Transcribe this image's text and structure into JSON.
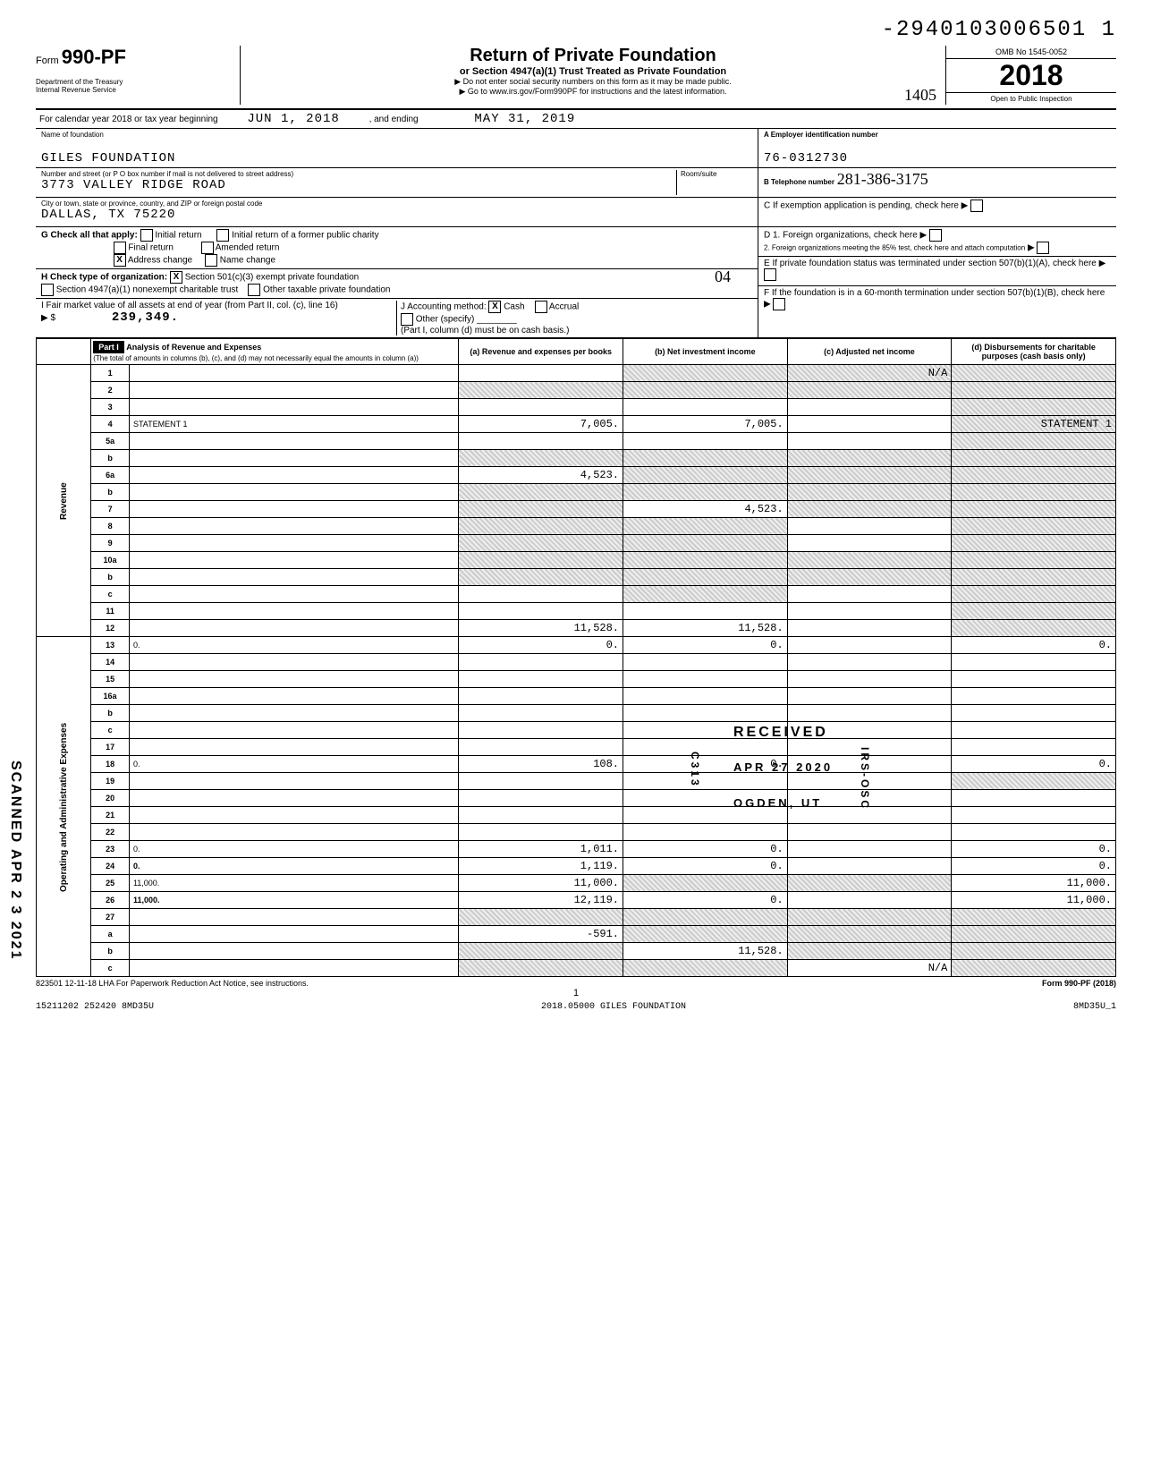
{
  "doc_id": "-2940103006501  1",
  "form": {
    "number": "990-PF",
    "prefix": "Form",
    "dept": "Department of the Treasury\nInternal Revenue Service",
    "title": "Return of Private Foundation",
    "subtitle": "or Section 4947(a)(1) Trust Treated as Private Foundation",
    "note1": "▶ Do not enter social security numbers on this form as it may be made public.",
    "note2": "▶ Go to www.irs.gov/Form990PF for instructions and the latest information.",
    "omb": "OMB No 1545-0052",
    "year": "2018",
    "open": "Open to Public Inspection"
  },
  "hand_note": "1405",
  "cal_year": {
    "label": "For calendar year 2018 or tax year beginning",
    "begin": "JUN 1, 2018",
    "mid": ", and ending",
    "end": "MAY 31, 2019"
  },
  "name": {
    "label": "Name of foundation",
    "value": "GILES FOUNDATION"
  },
  "address": {
    "label": "Number and street (or P O box number if mail is not delivered to street address)",
    "value": "3773 VALLEY RIDGE ROAD",
    "room_label": "Room/suite",
    "city_label": "City or town, state or province, country, and ZIP or foreign postal code",
    "city_value": "DALLAS, TX   75220"
  },
  "ein": {
    "label": "A Employer identification number",
    "value": "76-0312730"
  },
  "tel": {
    "label": "B Telephone number",
    "value": "281-386-3175"
  },
  "boxC": "C  If exemption application is pending, check here",
  "boxD1": "D 1. Foreign organizations, check here",
  "boxD2": "2. Foreign organizations meeting the 85% test, check here and attach computation",
  "boxE": "E  If private foundation status was terminated under section 507(b)(1)(A), check here",
  "boxF": "F  If the foundation is in a 60-month termination under section 507(b)(1)(B), check here",
  "checkG": {
    "label": "G   Check all that apply:",
    "items": [
      "Initial return",
      "Initial return of a former public charity",
      "Final return",
      "Amended return",
      "Address change",
      "Name change"
    ]
  },
  "checkH": {
    "label": "H   Check type of organization:",
    "items": [
      "Section 501(c)(3) exempt private foundation",
      "Section 4947(a)(1) nonexempt charitable trust",
      "Other taxable private foundation"
    ]
  },
  "lineI": {
    "label": "I   Fair market value of all assets at end of year (from Part II, col. (c), line 16)",
    "value": "239,349."
  },
  "lineJ": {
    "label": "J   Accounting method:",
    "cash": "Cash",
    "accrual": "Accrual",
    "other": "Other (specify)",
    "note": "(Part I, column (d) must be on cash basis.)"
  },
  "hand_04": "04",
  "part1": {
    "title": "Part I",
    "header": "Analysis of Revenue and Expenses",
    "subheader": "(The total of amounts in columns (b), (c), and (d) may not necessarily equal the amounts in column (a))",
    "col_a": "(a) Revenue and expenses per books",
    "col_b": "(b) Net investment income",
    "col_c": "(c) Adjusted net income",
    "col_d": "(d) Disbursements for charitable purposes (cash basis only)"
  },
  "side_rev": "Revenue",
  "side_exp": "Operating and Administrative Expenses",
  "rows": [
    {
      "n": "1",
      "d": "",
      "a": "",
      "b": "",
      "c": "N/A",
      "shadeB": true,
      "shadeC": true,
      "shadeD": true
    },
    {
      "n": "2",
      "d": "",
      "a": "",
      "b": "",
      "c": "",
      "shadeA": true,
      "shadeB": true,
      "shadeC": true,
      "shadeD": true
    },
    {
      "n": "3",
      "d": "",
      "a": "",
      "b": "",
      "c": "",
      "shadeD": true
    },
    {
      "n": "4",
      "d": "STATEMENT 1",
      "a": "7,005.",
      "b": "7,005.",
      "c": "",
      "shadeD": true
    },
    {
      "n": "5a",
      "d": "",
      "a": "",
      "b": "",
      "c": "",
      "shadeD": true
    },
    {
      "n": "b",
      "d": "",
      "a": "",
      "b": "",
      "c": "",
      "shadeA": true,
      "shadeB": true,
      "shadeC": true,
      "shadeD": true
    },
    {
      "n": "6a",
      "d": "",
      "a": "4,523.",
      "b": "",
      "c": "",
      "shadeB": true,
      "shadeC": true,
      "shadeD": true
    },
    {
      "n": "b",
      "d": "",
      "a": "",
      "b": "",
      "c": "",
      "shadeA": true,
      "shadeB": true,
      "shadeC": true,
      "shadeD": true
    },
    {
      "n": "7",
      "d": "",
      "a": "",
      "b": "4,523.",
      "c": "",
      "shadeA": true,
      "shadeC": true,
      "shadeD": true
    },
    {
      "n": "8",
      "d": "",
      "a": "",
      "b": "",
      "c": "",
      "shadeA": true,
      "shadeB": true,
      "shadeD": true
    },
    {
      "n": "9",
      "d": "",
      "a": "",
      "b": "",
      "c": "",
      "shadeA": true,
      "shadeB": true,
      "shadeD": true
    },
    {
      "n": "10a",
      "d": "",
      "a": "",
      "b": "",
      "c": "",
      "shadeA": true,
      "shadeB": true,
      "shadeC": true,
      "shadeD": true
    },
    {
      "n": "b",
      "d": "",
      "a": "",
      "b": "",
      "c": "",
      "shadeA": true,
      "shadeB": true,
      "shadeC": true,
      "shadeD": true
    },
    {
      "n": "c",
      "d": "",
      "a": "",
      "b": "",
      "c": "",
      "shadeB": true,
      "shadeD": true
    },
    {
      "n": "11",
      "d": "",
      "a": "",
      "b": "",
      "c": "",
      "shadeD": true
    },
    {
      "n": "12",
      "d": "",
      "a": "11,528.",
      "b": "11,528.",
      "c": "",
      "shadeD": true,
      "bold": true
    },
    {
      "n": "13",
      "d": "0.",
      "a": "0.",
      "b": "0.",
      "c": ""
    },
    {
      "n": "14",
      "d": "",
      "a": "",
      "b": "",
      "c": ""
    },
    {
      "n": "15",
      "d": "",
      "a": "",
      "b": "",
      "c": ""
    },
    {
      "n": "16a",
      "d": "",
      "a": "",
      "b": "",
      "c": ""
    },
    {
      "n": "b",
      "d": "",
      "a": "",
      "b": "",
      "c": ""
    },
    {
      "n": "c",
      "d": "",
      "a": "",
      "b": "",
      "c": ""
    },
    {
      "n": "17",
      "d": "",
      "a": "",
      "b": "",
      "c": ""
    },
    {
      "n": "18",
      "d": "0.",
      "a": "108.",
      "b": "0.",
      "c": ""
    },
    {
      "n": "19",
      "d": "",
      "a": "",
      "b": "",
      "c": "",
      "shadeD": true
    },
    {
      "n": "20",
      "d": "",
      "a": "",
      "b": "",
      "c": ""
    },
    {
      "n": "21",
      "d": "",
      "a": "",
      "b": "",
      "c": ""
    },
    {
      "n": "22",
      "d": "",
      "a": "",
      "b": "",
      "c": ""
    },
    {
      "n": "23",
      "d": "0.",
      "a": "1,011.",
      "b": "0.",
      "c": ""
    },
    {
      "n": "24",
      "d": "0.",
      "a": "1,119.",
      "b": "0.",
      "c": "",
      "bold": true
    },
    {
      "n": "25",
      "d": "11,000.",
      "a": "11,000.",
      "b": "",
      "c": "",
      "shadeB": true,
      "shadeC": true
    },
    {
      "n": "26",
      "d": "11,000.",
      "a": "12,119.",
      "b": "0.",
      "c": "",
      "bold": true
    },
    {
      "n": "27",
      "d": "",
      "a": "",
      "b": "",
      "c": "",
      "shadeA": true,
      "shadeB": true,
      "shadeC": true,
      "shadeD": true
    },
    {
      "n": "a",
      "d": "",
      "a": "-591.",
      "b": "",
      "c": "",
      "shadeB": true,
      "shadeC": true,
      "shadeD": true
    },
    {
      "n": "b",
      "d": "",
      "a": "",
      "b": "11,528.",
      "c": "",
      "shadeA": true,
      "shadeC": true,
      "shadeD": true
    },
    {
      "n": "c",
      "d": "",
      "a": "",
      "b": "",
      "c": "N/A",
      "shadeA": true,
      "shadeB": true,
      "shadeD": true
    }
  ],
  "stamps": {
    "received": "RECEIVED",
    "date": "APR 27 2020",
    "loc": "OGDEN, UT",
    "c313": "C313",
    "irs": "IRS-OSC"
  },
  "footer": {
    "lha": "823501  12-11-18   LHA  For Paperwork Reduction Act Notice, see instructions.",
    "form": "Form 990-PF (2018)",
    "page": "1",
    "bl": "15211202 252420 8MD35U",
    "bc": "2018.05000 GILES FOUNDATION",
    "br": "8MD35U_1"
  },
  "scanned": "SCANNED APR 2 3 2021"
}
